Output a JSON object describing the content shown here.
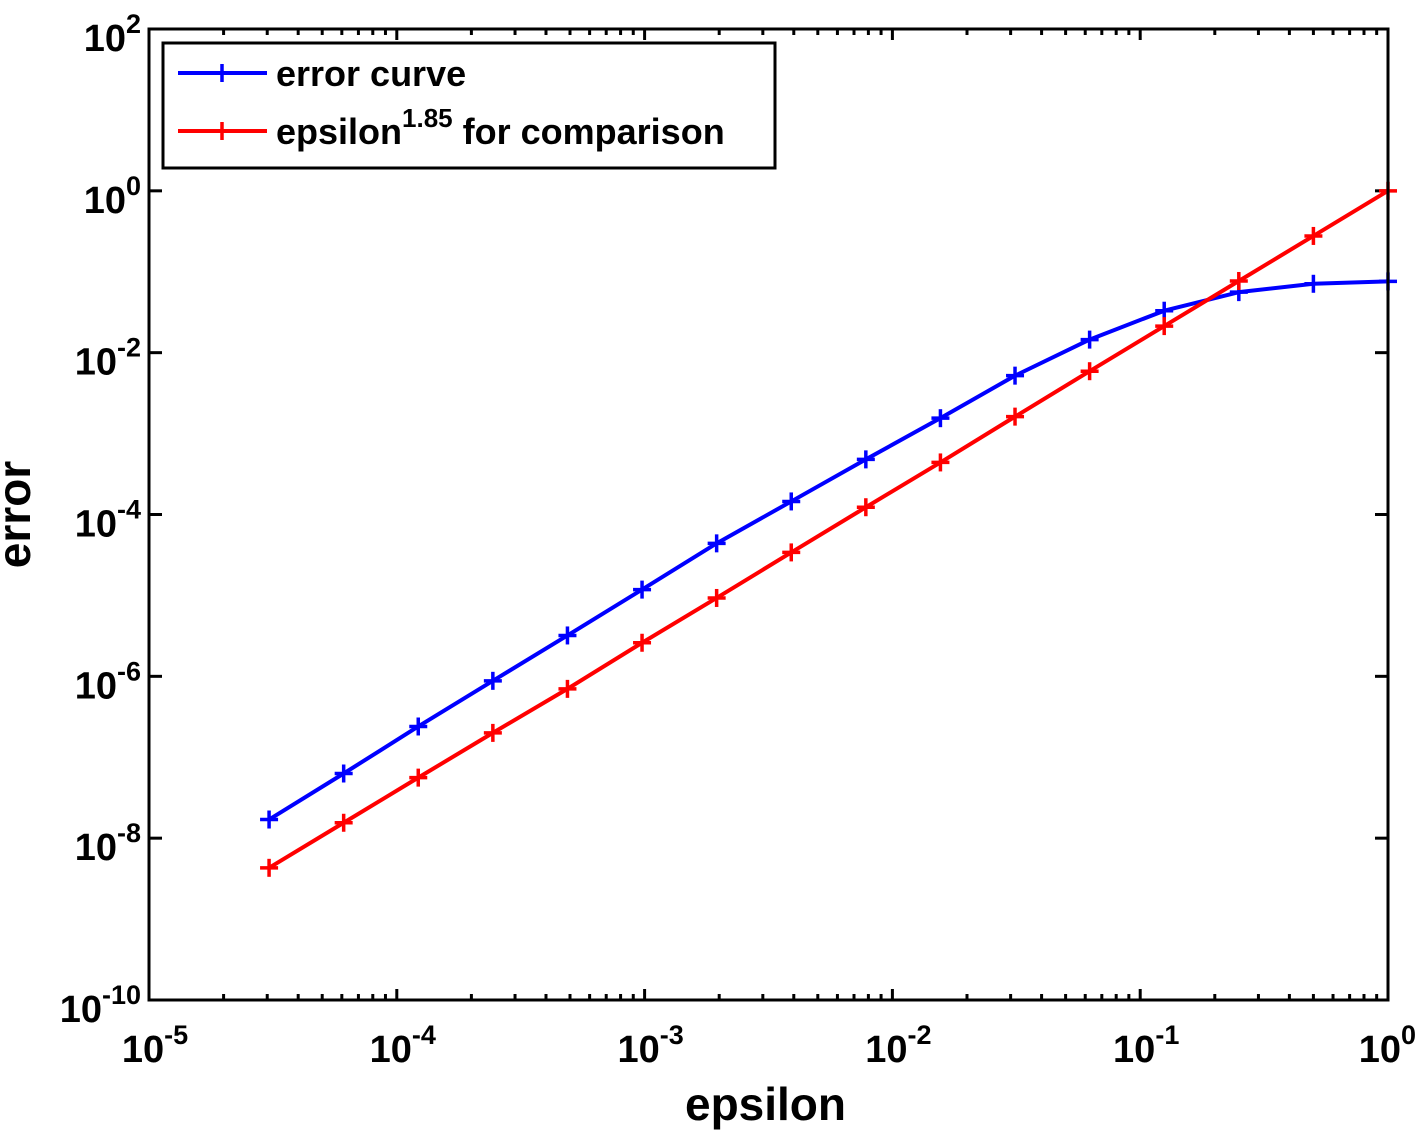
{
  "chart_data": {
    "type": "line",
    "title": "",
    "xlabel": "epsilon",
    "ylabel": "error",
    "xscale": "log",
    "yscale": "log",
    "xlim": [
      1e-05,
      1
    ],
    "ylim": [
      1e-10,
      100
    ],
    "x_ticks": [
      {
        "value": 1e-05,
        "base": "10",
        "exp": "-5"
      },
      {
        "value": 0.0001,
        "base": "10",
        "exp": "-4"
      },
      {
        "value": 0.001,
        "base": "10",
        "exp": "-3"
      },
      {
        "value": 0.01,
        "base": "10",
        "exp": "-2"
      },
      {
        "value": 0.1,
        "base": "10",
        "exp": "-1"
      },
      {
        "value": 1,
        "base": "10",
        "exp": "0"
      }
    ],
    "y_ticks": [
      {
        "value": 1e-10,
        "base": "10",
        "exp": "-10"
      },
      {
        "value": 1e-08,
        "base": "10",
        "exp": "-8"
      },
      {
        "value": 1e-06,
        "base": "10",
        "exp": "-6"
      },
      {
        "value": 0.0001,
        "base": "10",
        "exp": "-4"
      },
      {
        "value": 0.01,
        "base": "10",
        "exp": "-2"
      },
      {
        "value": 1,
        "base": "10",
        "exp": "0"
      },
      {
        "value": 100,
        "base": "10",
        "exp": "2"
      }
    ],
    "legend_position": "top-left",
    "series": [
      {
        "name": "error curve",
        "legend_text": "error curve",
        "legend_sup": "",
        "legend_suffix": "",
        "color": "#0000ff",
        "marker": "+",
        "x": [
          3.0518e-05,
          6.1035e-05,
          0.00012207,
          0.00024414,
          0.00048828,
          0.00097656,
          0.0019531,
          0.0039063,
          0.0078125,
          0.015625,
          0.03125,
          0.0625,
          0.125,
          0.25,
          0.5,
          1
        ],
        "y": [
          1.7e-08,
          6.3e-08,
          2.4e-07,
          8.8e-07,
          3.2e-06,
          1.18e-05,
          4.4e-05,
          0.000145,
          0.00048,
          0.00155,
          0.0052,
          0.0145,
          0.033,
          0.056,
          0.071,
          0.076
        ]
      },
      {
        "name": "epsilon^1.85 for comparison",
        "legend_text": "epsilon",
        "legend_sup": "1.85",
        "legend_suffix": " for comparison",
        "color": "#ff0000",
        "marker": "+",
        "x": [
          3.0518e-05,
          6.1035e-05,
          0.00012207,
          0.00024414,
          0.00048828,
          0.00097656,
          0.0019531,
          0.0039063,
          0.0078125,
          0.015625,
          0.03125,
          0.0625,
          0.125,
          0.25,
          0.5,
          1
        ],
        "y": [
          4.3e-09,
          1.55e-08,
          5.6e-08,
          2e-07,
          7e-07,
          2.6e-06,
          9.3e-06,
          3.4e-05,
          0.000123,
          0.00044,
          0.00162,
          0.0059,
          0.0213,
          0.0769,
          0.277,
          1
        ]
      }
    ]
  }
}
